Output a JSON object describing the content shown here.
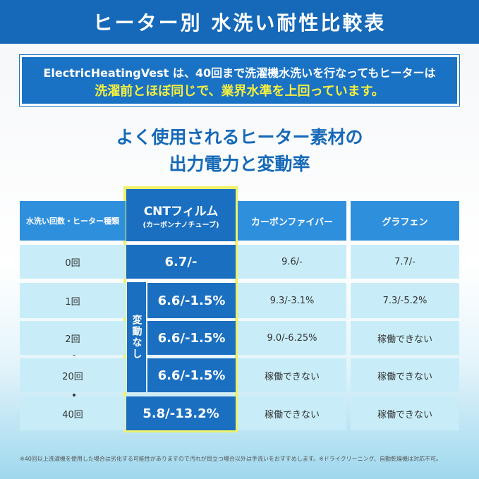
{
  "header": {
    "title": "ヒーター別 水洗い耐性比較表"
  },
  "banner": {
    "line1": "ElectricHeatingVest は、40回まで洗濯機水洗いを行なってもヒーターは",
    "line2": "洗濯前とほぼ同じで、業界水準を上回っています。"
  },
  "heading": {
    "lines": [
      "よく使用されるヒーター素材の",
      "出力電力と変動率"
    ]
  },
  "table": {
    "columns": [
      {
        "label": "水洗い回数・ヒーター種類"
      },
      {
        "label": "CNTフィルム",
        "sub": "(カーボンナノチューブ)"
      },
      {
        "label": "カーボンファイバー"
      },
      {
        "label": "グラフェン"
      }
    ],
    "rows": [
      [
        "0回",
        "6.7/-",
        "9.6/-",
        "7.7/-"
      ],
      [
        "1回",
        "6.6/-1.5%",
        "9.3/-3.1%",
        "7.3/-5.2%"
      ],
      [
        "2回",
        "6.6/-1.5%",
        "9.0/-6.25%",
        "稼働できない"
      ],
      [
        "20回",
        "6.6/-1.5%",
        "稼働できない",
        "稼働できない"
      ],
      [
        "40回",
        "5.8/-13.2%",
        "稼働できない",
        "稼働できない"
      ]
    ],
    "note_label": "変動なし"
  },
  "footnote": "※40回以上洗濯機を使用した場合は劣化する可能性がありますので汚れが目立つ場合以外は手洗いをおすすめします。※ドライクリーニング、自動乾燥機は対応不可。"
}
